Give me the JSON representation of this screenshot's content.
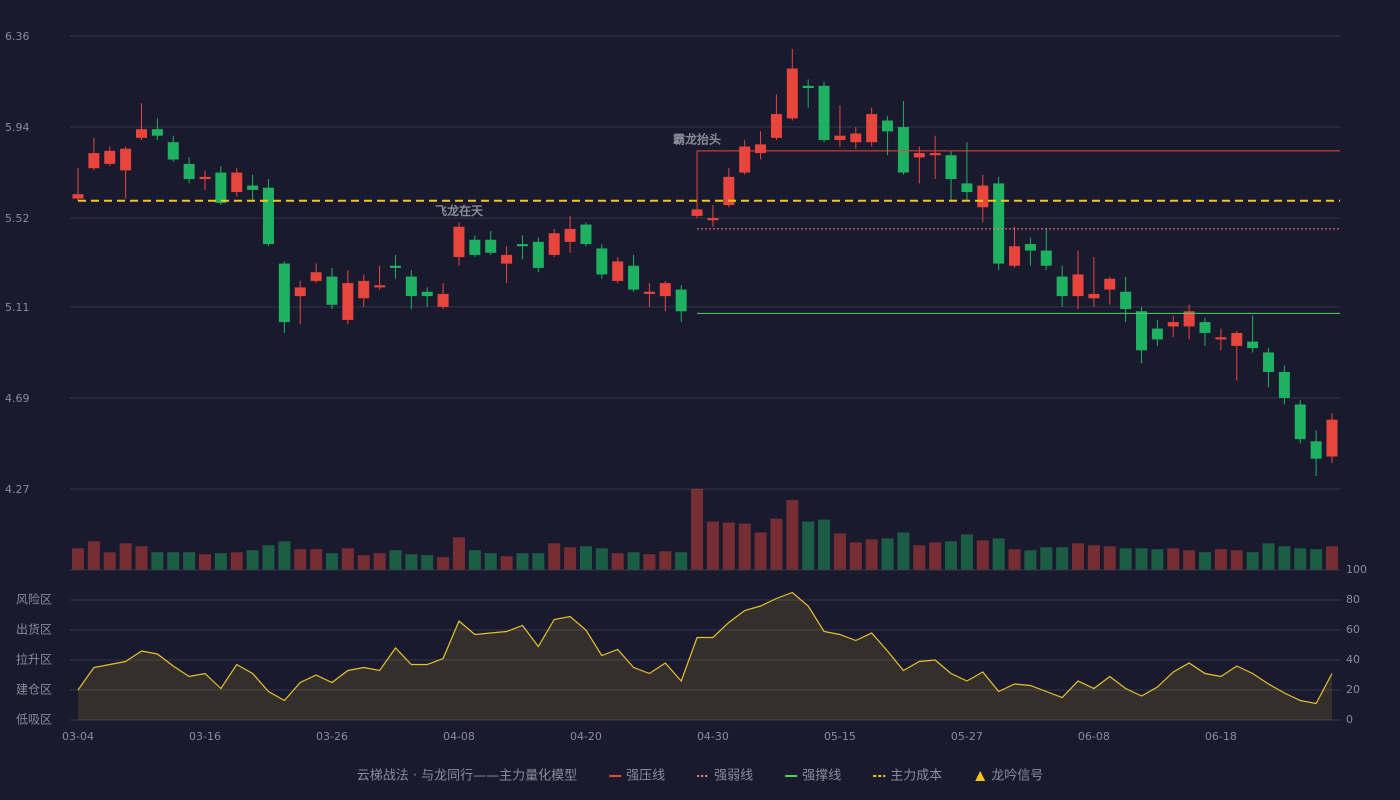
{
  "chart_data": [
    {
      "type": "candlestick",
      "categories": [
        "03-04",
        null,
        null,
        null,
        null,
        null,
        null,
        null,
        "03-16",
        null,
        null,
        null,
        null,
        null,
        null,
        null,
        "03-26",
        null,
        null,
        null,
        null,
        null,
        null,
        null,
        "04-08",
        null,
        null,
        null,
        null,
        null,
        null,
        null,
        "04-20",
        null,
        null,
        null,
        null,
        null,
        null,
        null,
        "04-30",
        null,
        null,
        null,
        null,
        null,
        null,
        null,
        "05-15",
        null,
        null,
        null,
        null,
        null,
        null,
        null,
        "05-27",
        null,
        null,
        null,
        null,
        null,
        null,
        null,
        "06-08",
        null,
        null,
        null,
        null,
        null,
        null,
        null,
        "06-18",
        null,
        null,
        null,
        null,
        null,
        null,
        null
      ],
      "open": [
        5.61,
        5.75,
        5.77,
        5.74,
        5.89,
        5.93,
        5.87,
        5.77,
        5.7,
        5.73,
        5.64,
        5.67,
        5.66,
        5.31,
        5.16,
        5.23,
        5.25,
        5.05,
        5.15,
        5.2,
        5.3,
        5.25,
        5.18,
        5.11,
        5.34,
        5.42,
        5.42,
        5.31,
        5.4,
        5.41,
        5.35,
        5.41,
        5.49,
        5.38,
        5.23,
        5.3,
        5.17,
        5.16,
        5.19,
        5.53,
        5.51,
        5.58,
        5.73,
        5.82,
        5.89,
        5.98,
        6.13,
        6.13,
        5.88,
        5.87,
        5.87,
        5.97,
        5.94,
        5.8,
        5.81,
        5.81,
        5.68,
        5.57,
        5.68,
        5.3,
        5.4,
        5.37,
        5.25,
        5.16,
        5.15,
        5.19,
        5.18,
        5.09,
        5.01,
        5.02,
        5.02,
        5.04,
        4.96,
        4.93,
        4.95,
        4.9,
        4.81,
        4.66,
        4.49,
        4.42
      ],
      "high": [
        5.75,
        5.89,
        5.85,
        5.85,
        6.05,
        5.98,
        5.9,
        5.8,
        5.74,
        5.76,
        5.75,
        5.72,
        5.7,
        5.32,
        5.23,
        5.31,
        5.29,
        5.28,
        5.26,
        5.3,
        5.35,
        5.28,
        5.2,
        5.22,
        5.5,
        5.44,
        5.46,
        5.39,
        5.44,
        5.43,
        5.47,
        5.53,
        5.5,
        5.4,
        5.34,
        5.35,
        5.22,
        5.23,
        5.21,
        5.6,
        5.58,
        5.75,
        5.88,
        5.92,
        6.09,
        6.3,
        6.16,
        6.15,
        6.04,
        5.94,
        6.03,
        5.99,
        6.06,
        5.85,
        5.9,
        5.83,
        5.87,
        5.72,
        5.71,
        5.48,
        5.43,
        5.47,
        5.3,
        5.37,
        5.34,
        5.25,
        5.25,
        5.11,
        5.05,
        5.07,
        5.12,
        5.06,
        5.01,
        5.0,
        5.07,
        4.92,
        4.84,
        4.68,
        4.54,
        4.62
      ],
      "low": [
        5.6,
        5.74,
        5.76,
        5.61,
        5.88,
        5.88,
        5.78,
        5.68,
        5.65,
        5.58,
        5.62,
        5.6,
        5.39,
        4.99,
        5.03,
        5.22,
        5.1,
        5.03,
        5.11,
        5.19,
        5.24,
        5.1,
        5.11,
        5.1,
        5.3,
        5.34,
        5.35,
        5.22,
        5.33,
        5.27,
        5.34,
        5.36,
        5.39,
        5.24,
        5.22,
        5.18,
        5.11,
        5.09,
        5.04,
        5.52,
        5.48,
        5.57,
        5.72,
        5.79,
        5.88,
        5.97,
        6.03,
        5.87,
        5.85,
        5.84,
        5.85,
        5.81,
        5.72,
        5.68,
        5.7,
        5.6,
        5.6,
        5.5,
        5.28,
        5.29,
        5.3,
        5.28,
        5.11,
        5.1,
        5.11,
        5.12,
        5.04,
        4.85,
        4.93,
        4.97,
        4.96,
        4.93,
        4.91,
        4.77,
        4.9,
        4.74,
        4.66,
        4.48,
        4.33,
        4.39
      ],
      "close": [
        5.63,
        5.82,
        5.83,
        5.84,
        5.93,
        5.9,
        5.79,
        5.7,
        5.71,
        5.59,
        5.73,
        5.65,
        5.4,
        5.04,
        5.2,
        5.27,
        5.12,
        5.22,
        5.23,
        5.21,
        5.29,
        5.16,
        5.16,
        5.17,
        5.48,
        5.35,
        5.36,
        5.35,
        5.39,
        5.29,
        5.45,
        5.47,
        5.4,
        5.26,
        5.32,
        5.19,
        5.18,
        5.22,
        5.09,
        5.56,
        5.52,
        5.71,
        5.85,
        5.86,
        6.0,
        6.21,
        6.12,
        5.88,
        5.9,
        5.91,
        6.0,
        5.92,
        5.73,
        5.82,
        5.82,
        5.7,
        5.64,
        5.67,
        5.31,
        5.39,
        5.37,
        5.3,
        5.16,
        5.26,
        5.17,
        5.24,
        5.1,
        4.91,
        4.96,
        5.04,
        5.09,
        4.99,
        4.97,
        4.99,
        4.92,
        4.81,
        4.69,
        4.5,
        4.41,
        4.59
      ],
      "up_color": "#e8453c",
      "down_color": "#1fb162",
      "ylim": [
        4.27,
        6.36
      ],
      "yticks": [
        6.36,
        5.94,
        5.52,
        5.11,
        4.69,
        4.27
      ],
      "grid": true,
      "lines": [
        {
          "name": "强压线",
          "color": "#e8453c",
          "dash": "solid",
          "value": 5.83,
          "from": 39
        },
        {
          "name": "强弱线",
          "color": "#ff7f8f",
          "dash": "dotted",
          "value": 5.47,
          "from": 39
        },
        {
          "name": "强撑线",
          "color": "#4cd35a",
          "dash": "solid",
          "value": 5.08,
          "from": 39
        },
        {
          "name": "主力成本",
          "color": "#f5c518",
          "dash": "dashed",
          "value": 5.6,
          "from": 0
        }
      ],
      "signal_name": "龙吟信号",
      "signal_color": "#f5c518",
      "signals": [
        {
          "label": "飞龙在天",
          "index": 24,
          "color": "#f5c518"
        },
        {
          "label": "霸龙抬头",
          "index": 39,
          "color": "#7ec8f5"
        }
      ]
    },
    {
      "type": "bar",
      "values": [
        22,
        29,
        18,
        27,
        24,
        18,
        18,
        18,
        16,
        17,
        18,
        20,
        25,
        29,
        21,
        21,
        17,
        22,
        15,
        17,
        20,
        16,
        15,
        13,
        33,
        20,
        17,
        14,
        17,
        17,
        27,
        23,
        24,
        22,
        17,
        18,
        16,
        19,
        18,
        82,
        49,
        48,
        47,
        38,
        52,
        71,
        49,
        51,
        37,
        28,
        31,
        32,
        38,
        25,
        28,
        29,
        36,
        30,
        32,
        21,
        20,
        23,
        23,
        27,
        25,
        24,
        22,
        22,
        21,
        22,
        20,
        18,
        21,
        20,
        18,
        27,
        24,
        22,
        21,
        24
      ]
    },
    {
      "type": "line",
      "color": "#e6c229",
      "values": [
        20,
        35,
        37,
        39,
        46,
        44,
        36,
        29,
        31,
        21,
        37,
        31,
        19,
        13,
        25,
        30,
        25,
        33,
        35,
        33,
        48,
        37,
        37,
        41,
        66,
        57,
        58,
        59,
        63,
        49,
        67,
        69,
        60,
        43,
        47,
        35,
        31,
        38,
        26,
        55,
        55,
        65,
        73,
        76,
        81,
        85,
        76,
        59,
        57,
        53,
        58,
        46,
        33,
        39,
        40,
        31,
        26,
        32,
        19,
        24,
        23,
        19,
        15,
        26,
        21,
        29,
        21,
        16,
        22,
        32,
        38,
        31,
        29,
        36,
        31,
        24,
        18,
        13,
        11,
        31
      ],
      "ylim": [
        0,
        100
      ],
      "yticks": [
        100,
        80,
        60,
        40,
        20,
        0
      ],
      "ytick_colors": [
        "#4cd35a",
        "#f0a030",
        "#e040e0",
        "#4d8ff0",
        "#f0a030",
        "#f03c3c"
      ],
      "zones": [
        "风险区",
        "出货区",
        "拉升区",
        "建仓区",
        "低吸区"
      ],
      "zone_colors": [
        "#f0a030",
        "#e040e0",
        "#4d8ff0",
        "#f05030",
        "#f03c3c"
      ]
    }
  ],
  "legend_title": "云梯战法 · 与龙同行——主力量化模型"
}
